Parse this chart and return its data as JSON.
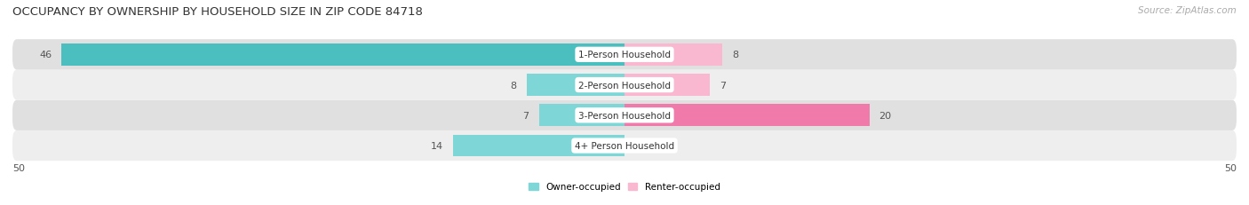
{
  "title": "OCCUPANCY BY OWNERSHIP BY HOUSEHOLD SIZE IN ZIP CODE 84718",
  "source": "Source: ZipAtlas.com",
  "categories": [
    "1-Person Household",
    "2-Person Household",
    "3-Person Household",
    "4+ Person Household"
  ],
  "owner_values": [
    46,
    8,
    7,
    14
  ],
  "renter_values": [
    8,
    7,
    20,
    0
  ],
  "owner_color": "#4bbfbf",
  "renter_color": "#f07aaa",
  "owner_color_light": "#7fd6d6",
  "renter_color_light": "#f9b8cf",
  "row_bg_color_dark": "#e0e0e0",
  "row_bg_color_light": "#eeeeee",
  "xlim": 50,
  "legend_owner": "Owner-occupied",
  "legend_renter": "Renter-occupied",
  "title_fontsize": 9.5,
  "source_fontsize": 7.5,
  "label_fontsize": 7.5,
  "bar_label_fontsize": 8,
  "background_color": "#ffffff"
}
